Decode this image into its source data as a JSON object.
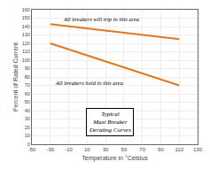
{
  "chart_data": {
    "type": "line",
    "xlabel": "Temperature in °Celsius",
    "ylabel": "Percent of Rated Current",
    "xlim": [
      -50,
      130
    ],
    "ylim": [
      0,
      160
    ],
    "xticks": [
      -50,
      -30,
      -10,
      10,
      30,
      50,
      70,
      90,
      110,
      130
    ],
    "yticks": [
      0,
      10,
      20,
      30,
      40,
      50,
      60,
      70,
      80,
      90,
      100,
      110,
      120,
      130,
      140,
      150,
      160
    ],
    "grid": true,
    "series": [
      {
        "x": [
          -30,
          110
        ],
        "values": [
          143,
          125
        ],
        "color": "#E07820"
      },
      {
        "x": [
          -30,
          110
        ],
        "values": [
          120,
          70
        ],
        "color": "#E07820"
      }
    ],
    "annotations": [
      {
        "text": "All breakers will trip in this area",
        "x": 25,
        "y": 149
      },
      {
        "text": "All breakers hold in this area",
        "x": 12,
        "y": 73
      },
      {
        "text": "Typical\nMaxi Breaker\nDerating Curves",
        "x": 35,
        "y": 26
      }
    ]
  }
}
